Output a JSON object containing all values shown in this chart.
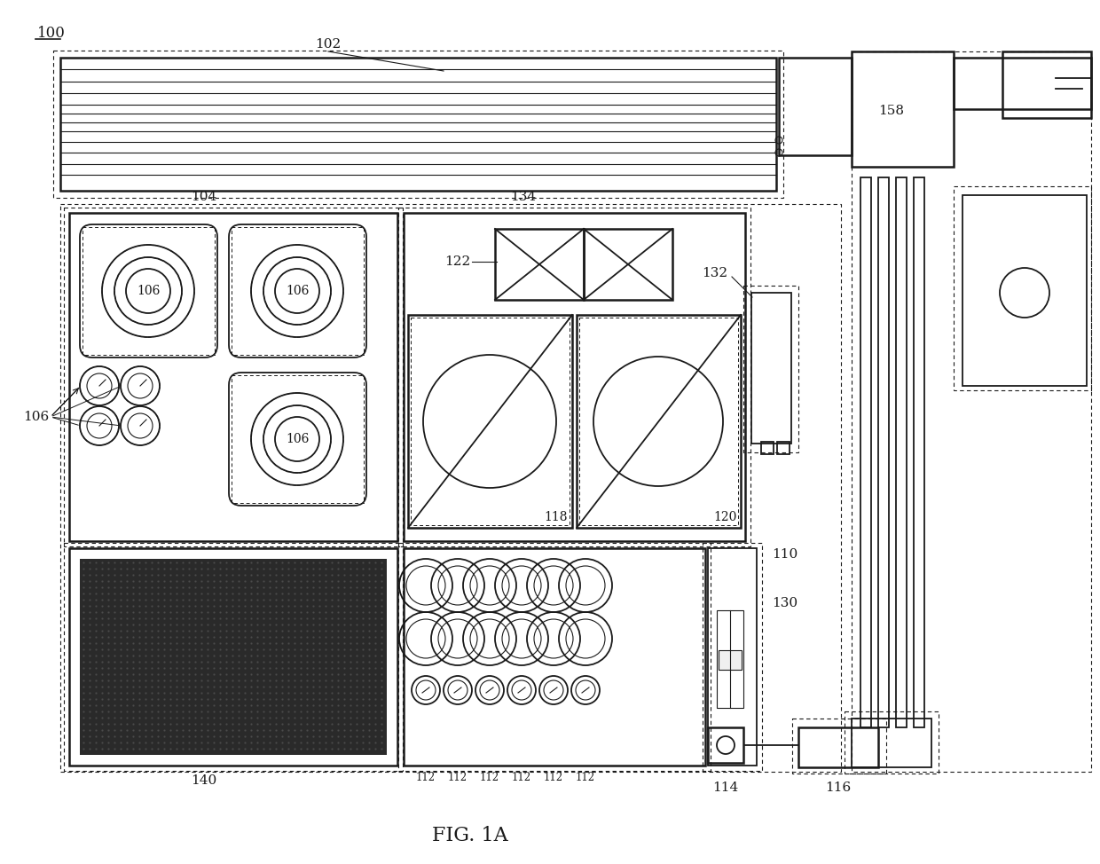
{
  "title": "FIG. 1A",
  "bg_color": "#ffffff",
  "line_color": "#1a1a1a",
  "label_100": "100",
  "label_102": "102",
  "label_104": "104",
  "label_106": "106",
  "label_110": "110",
  "label_112": "112",
  "label_114": "114",
  "label_116": "116",
  "label_118": "118",
  "label_120": "120",
  "label_122": "122",
  "label_130": "130",
  "label_132": "132",
  "label_134": "134",
  "label_140": "140",
  "label_158": "158"
}
